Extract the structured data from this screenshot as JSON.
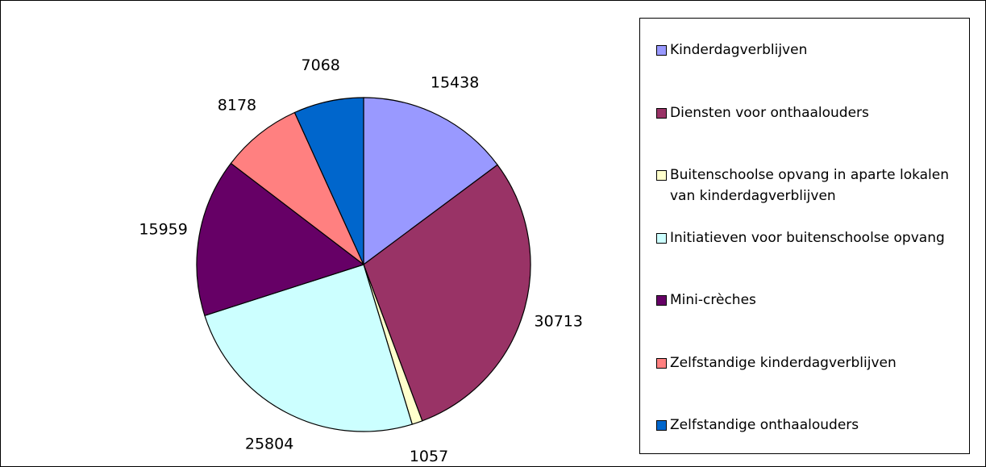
{
  "chart_data": {
    "type": "pie",
    "categories": [
      "Kinderdagverblijven",
      "Diensten voor onthaalouders",
      "Buitenschoolse opvang in aparte lokalen van kinderdagverblijven",
      "Initiatieven voor buitenschoolse opvang",
      "Mini-crèches",
      "Zelfstandige kinderdagverblijven",
      "Zelfstandige onthaalouders"
    ],
    "values": [
      15438,
      30713,
      1057,
      25804,
      15959,
      8178,
      7068
    ],
    "colors": [
      "#9999ff",
      "#993366",
      "#ffffcc",
      "#ccffff",
      "#660066",
      "#ff8080",
      "#0066cc"
    ],
    "legend": "right"
  }
}
